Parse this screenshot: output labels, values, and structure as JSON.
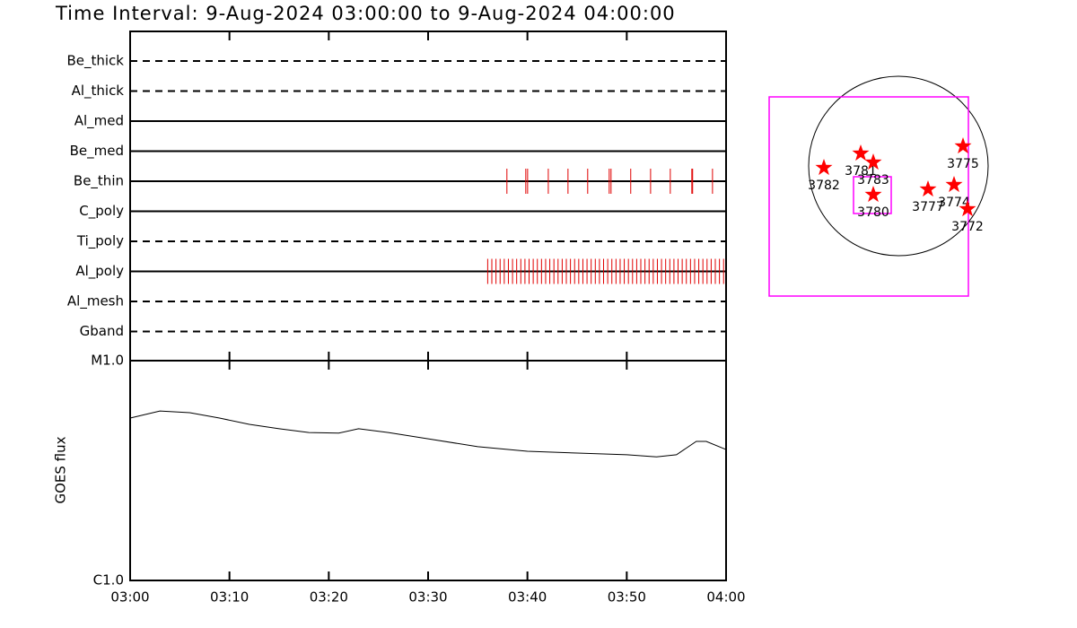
{
  "chart_data": [
    {
      "type": "timeline",
      "title": "Time Interval:  9-Aug-2024 03:00:00 to  9-Aug-2024 04:00:00",
      "xlim": [
        "03:00",
        "04:00"
      ],
      "color": "#e00000",
      "series": [
        {
          "name": "Be_thick",
          "style": "dashed",
          "times": []
        },
        {
          "name": "Al_thick",
          "style": "dashed",
          "times": []
        },
        {
          "name": "Al_med",
          "style": "solid",
          "times": []
        },
        {
          "name": "Be_med",
          "style": "solid",
          "times": []
        },
        {
          "name": "Be_thin",
          "style": "solid",
          "times": [
            "03:37:56",
            "03:39:50",
            "03:40:01",
            "03:42:06",
            "03:44:05",
            "03:46:04",
            "03:48:14",
            "03:48:25",
            "03:50:24",
            "03:52:24",
            "03:54:23",
            "03:56:33",
            "03:56:38",
            "03:58:38"
          ]
        },
        {
          "name": "C_poly",
          "style": "solid",
          "times": []
        },
        {
          "name": "Ti_poly",
          "style": "dashed",
          "times": []
        },
        {
          "name": "Al_poly",
          "style": "solid",
          "times": [
            "03:36:00",
            "03:36:25",
            "03:36:50",
            "03:37:15",
            "03:37:40",
            "03:38:05",
            "03:38:30",
            "03:38:55",
            "03:39:20",
            "03:39:45",
            "03:40:10",
            "03:40:35",
            "03:41:00",
            "03:41:25",
            "03:41:50",
            "03:42:15",
            "03:42:40",
            "03:43:05",
            "03:43:30",
            "03:43:55",
            "03:44:20",
            "03:44:45",
            "03:45:10",
            "03:45:35",
            "03:46:00",
            "03:46:25",
            "03:46:50",
            "03:47:15",
            "03:47:40",
            "03:48:05",
            "03:48:30",
            "03:48:55",
            "03:49:20",
            "03:49:45",
            "03:50:10",
            "03:50:35",
            "03:51:00",
            "03:51:25",
            "03:51:50",
            "03:52:15",
            "03:52:40",
            "03:53:05",
            "03:53:30",
            "03:53:55",
            "03:54:20",
            "03:54:45",
            "03:55:10",
            "03:55:35",
            "03:56:00",
            "03:56:25",
            "03:56:50",
            "03:57:15",
            "03:57:40",
            "03:58:05",
            "03:58:30",
            "03:58:55",
            "03:59:20",
            "03:59:45"
          ]
        },
        {
          "name": "Al_mesh",
          "style": "dashed",
          "times": []
        },
        {
          "name": "Gband",
          "style": "dashed",
          "times": []
        }
      ]
    },
    {
      "type": "line",
      "ylabel": "GOES flux",
      "x": [
        "03:00",
        "03:03",
        "03:06",
        "03:09",
        "03:12",
        "03:15",
        "03:18",
        "03:21",
        "03:23",
        "03:26",
        "03:30",
        "03:35",
        "03:40",
        "03:45",
        "03:50",
        "03:53",
        "03:55",
        "03:57",
        "03:58",
        "04:00"
      ],
      "values": [
        5.48e-06,
        5.9e-06,
        5.8e-06,
        5.48e-06,
        5.13e-06,
        4.9e-06,
        4.71e-06,
        4.68e-06,
        4.9e-06,
        4.71e-06,
        4.41e-06,
        4.06e-06,
        3.87e-06,
        3.8e-06,
        3.73e-06,
        3.65e-06,
        3.73e-06,
        4.29e-06,
        4.29e-06,
        3.94e-06
      ],
      "xlim": [
        "03:00",
        "04:00"
      ],
      "xticks": [
        "03:00",
        "03:10",
        "03:20",
        "03:30",
        "03:40",
        "03:50",
        "04:00"
      ],
      "ylim": [
        1e-06,
        1e-05
      ],
      "yticks": [
        {
          "value": 1e-06,
          "label": "C1.0"
        },
        {
          "value": 1e-05,
          "label": "M1.0"
        }
      ],
      "log_y": true,
      "color": "#000000"
    },
    {
      "type": "map",
      "color": "#ff00ff",
      "marker_color": "#ff0000",
      "labels": [
        "3782",
        "3781",
        "3783",
        "3780",
        "3777",
        "3774",
        "3775",
        "3772"
      ]
    }
  ]
}
